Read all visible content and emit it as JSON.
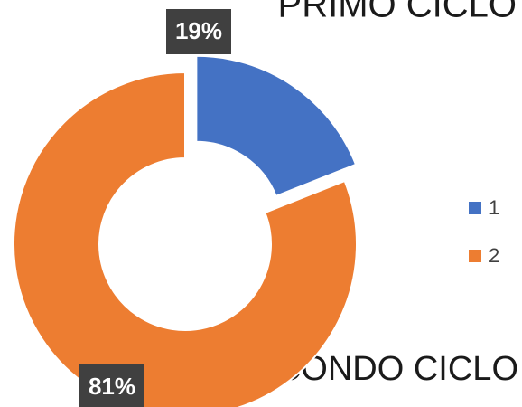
{
  "chart_data": {
    "type": "pie",
    "donut": true,
    "categories": [
      "1",
      "2"
    ],
    "values": [
      19,
      81
    ],
    "value_labels": [
      "19%",
      "81%"
    ],
    "colors": [
      "#4472c4",
      "#ed7d31"
    ],
    "exploded": [
      true,
      false
    ],
    "annotations": [
      "PRIMO CICLO",
      "SECONDO CICLO"
    ],
    "legend": "right"
  }
}
